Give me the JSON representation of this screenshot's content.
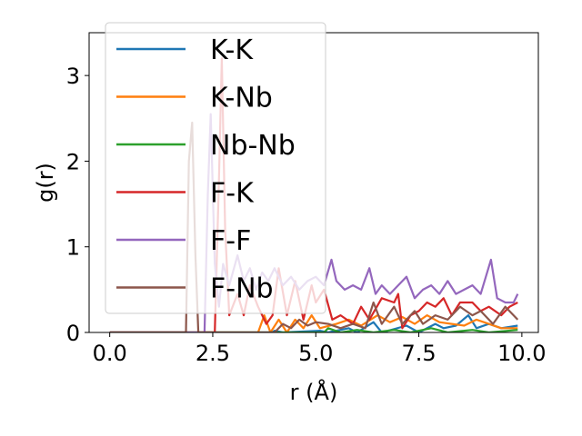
{
  "chart_data": {
    "type": "line",
    "title": "",
    "xlabel": "r (Å)",
    "ylabel": "g(r)",
    "xlim": [
      -0.5,
      10.4
    ],
    "ylim": [
      0,
      3.5
    ],
    "xticks": [
      "0.0",
      "2.5",
      "5.0",
      "7.5",
      "10.0"
    ],
    "xtick_values": [
      0,
      2.5,
      5,
      7.5,
      10
    ],
    "yticks": [
      "0",
      "1",
      "2",
      "3"
    ],
    "ytick_values": [
      0,
      1,
      2,
      3
    ],
    "legend_position": "upper-left",
    "grid": false,
    "series": [
      {
        "name": "K-K",
        "color": "#1f77b4",
        "points": [
          [
            0,
            0
          ],
          [
            3.95,
            0
          ],
          [
            4.0,
            0.02
          ],
          [
            4.2,
            0
          ],
          [
            5.1,
            0.02
          ],
          [
            5.3,
            0
          ],
          [
            5.8,
            0.05
          ],
          [
            6.0,
            0
          ],
          [
            6.4,
            0.12
          ],
          [
            6.6,
            0
          ],
          [
            7.2,
            0.08
          ],
          [
            7.5,
            0
          ],
          [
            7.9,
            0.1
          ],
          [
            8.1,
            0.05
          ],
          [
            8.4,
            0.08
          ],
          [
            8.7,
            0.2
          ],
          [
            8.9,
            0.05
          ],
          [
            9.2,
            0.1
          ],
          [
            9.5,
            0.05
          ],
          [
            9.9,
            0.08
          ]
        ]
      },
      {
        "name": "K-Nb",
        "color": "#ff7f0e",
        "points": [
          [
            0,
            0
          ],
          [
            3.6,
            0
          ],
          [
            3.75,
            0.2
          ],
          [
            3.9,
            0
          ],
          [
            4.1,
            0.15
          ],
          [
            4.3,
            0
          ],
          [
            4.5,
            0.15
          ],
          [
            4.7,
            0.05
          ],
          [
            4.9,
            0.2
          ],
          [
            5.1,
            0.05
          ],
          [
            5.5,
            0.1
          ],
          [
            5.8,
            0.15
          ],
          [
            6.1,
            0.08
          ],
          [
            6.5,
            0.2
          ],
          [
            6.8,
            0.12
          ],
          [
            7.1,
            0.18
          ],
          [
            7.4,
            0.1
          ],
          [
            7.7,
            0.2
          ],
          [
            8.0,
            0.12
          ],
          [
            8.3,
            0.1
          ],
          [
            8.6,
            0.08
          ],
          [
            8.9,
            0.15
          ],
          [
            9.2,
            0.1
          ],
          [
            9.5,
            0.05
          ],
          [
            9.9,
            0.05
          ]
        ]
      },
      {
        "name": "Nb-Nb",
        "color": "#2ca02c",
        "points": [
          [
            0,
            0
          ],
          [
            5.2,
            0
          ],
          [
            5.3,
            0.05
          ],
          [
            5.6,
            0
          ],
          [
            6.0,
            0.03
          ],
          [
            6.4,
            0
          ],
          [
            6.9,
            0.03
          ],
          [
            7.3,
            0
          ],
          [
            7.8,
            0.05
          ],
          [
            8.2,
            0
          ],
          [
            8.8,
            0.03
          ],
          [
            9.2,
            0
          ],
          [
            9.9,
            0.03
          ]
        ]
      },
      {
        "name": "F-K",
        "color": "#d62728",
        "points": [
          [
            0,
            0
          ],
          [
            2.55,
            0
          ],
          [
            2.65,
            1.8
          ],
          [
            2.72,
            3.2
          ],
          [
            2.8,
            1.2
          ],
          [
            2.9,
            0.2
          ],
          [
            3.1,
            0.45
          ],
          [
            3.25,
            0.2
          ],
          [
            3.4,
            0.55
          ],
          [
            3.6,
            0.3
          ],
          [
            3.8,
            0.1
          ],
          [
            3.95,
            0.2
          ],
          [
            4.1,
            0.75
          ],
          [
            4.3,
            0.2
          ],
          [
            4.5,
            0.6
          ],
          [
            4.7,
            0.15
          ],
          [
            4.9,
            0.55
          ],
          [
            5.0,
            0.35
          ],
          [
            5.2,
            0.5
          ],
          [
            5.4,
            0.15
          ],
          [
            5.6,
            0.2
          ],
          [
            5.9,
            0.1
          ],
          [
            6.1,
            0.3
          ],
          [
            6.3,
            0.15
          ],
          [
            6.6,
            0.4
          ],
          [
            6.9,
            0.35
          ],
          [
            7.0,
            0.45
          ],
          [
            7.1,
            0.05
          ],
          [
            7.3,
            0.2
          ],
          [
            7.5,
            0.25
          ],
          [
            7.7,
            0.35
          ],
          [
            7.9,
            0.3
          ],
          [
            8.1,
            0.4
          ],
          [
            8.3,
            0.2
          ],
          [
            8.5,
            0.35
          ],
          [
            8.8,
            0.35
          ],
          [
            9.0,
            0.25
          ],
          [
            9.2,
            0.3
          ],
          [
            9.5,
            0.2
          ],
          [
            9.7,
            0.3
          ],
          [
            9.9,
            0.35
          ]
        ]
      },
      {
        "name": "F-F",
        "color": "#9467bd",
        "points": [
          [
            0,
            0
          ],
          [
            2.3,
            0
          ],
          [
            2.38,
            1.6
          ],
          [
            2.45,
            2.55
          ],
          [
            2.55,
            0.8
          ],
          [
            2.65,
            0.3
          ],
          [
            2.75,
            0.8
          ],
          [
            2.9,
            0.55
          ],
          [
            3.1,
            0.9
          ],
          [
            3.25,
            0.6
          ],
          [
            3.4,
            0.75
          ],
          [
            3.55,
            0.5
          ],
          [
            3.7,
            0.7
          ],
          [
            3.85,
            0.6
          ],
          [
            4.0,
            0.75
          ],
          [
            4.2,
            0.55
          ],
          [
            4.4,
            0.65
          ],
          [
            4.6,
            0.5
          ],
          [
            4.8,
            0.6
          ],
          [
            5.0,
            0.65
          ],
          [
            5.2,
            0.55
          ],
          [
            5.38,
            0.85
          ],
          [
            5.5,
            0.6
          ],
          [
            5.7,
            0.5
          ],
          [
            5.9,
            0.55
          ],
          [
            6.1,
            0.5
          ],
          [
            6.3,
            0.75
          ],
          [
            6.45,
            0.45
          ],
          [
            6.6,
            0.55
          ],
          [
            6.8,
            0.45
          ],
          [
            7.0,
            0.55
          ],
          [
            7.2,
            0.65
          ],
          [
            7.4,
            0.4
          ],
          [
            7.6,
            0.5
          ],
          [
            7.8,
            0.55
          ],
          [
            8.0,
            0.45
          ],
          [
            8.2,
            0.6
          ],
          [
            8.4,
            0.45
          ],
          [
            8.6,
            0.5
          ],
          [
            8.8,
            0.55
          ],
          [
            9.0,
            0.45
          ],
          [
            9.25,
            0.85
          ],
          [
            9.4,
            0.4
          ],
          [
            9.6,
            0.35
          ],
          [
            9.8,
            0.35
          ],
          [
            9.9,
            0.45
          ]
        ]
      },
      {
        "name": "F-Nb",
        "color": "#8c564b",
        "points": [
          [
            0,
            0
          ],
          [
            1.85,
            0
          ],
          [
            1.92,
            2.0
          ],
          [
            2.0,
            2.45
          ],
          [
            2.08,
            0.9
          ],
          [
            2.15,
            0
          ],
          [
            4.0,
            0
          ],
          [
            4.2,
            0.1
          ],
          [
            4.4,
            0.05
          ],
          [
            4.6,
            0.15
          ],
          [
            4.8,
            0.08
          ],
          [
            5.0,
            0.12
          ],
          [
            5.3,
            0.1
          ],
          [
            5.6,
            0.05
          ],
          [
            5.9,
            0.1
          ],
          [
            6.2,
            0.05
          ],
          [
            6.4,
            0.35
          ],
          [
            6.6,
            0.1
          ],
          [
            6.9,
            0.3
          ],
          [
            7.1,
            0.1
          ],
          [
            7.4,
            0.25
          ],
          [
            7.6,
            0.1
          ],
          [
            7.9,
            0.2
          ],
          [
            8.2,
            0.15
          ],
          [
            8.5,
            0.3
          ],
          [
            8.8,
            0.2
          ],
          [
            9.0,
            0.25
          ],
          [
            9.3,
            0.1
          ],
          [
            9.6,
            0.3
          ],
          [
            9.9,
            0.15
          ]
        ]
      }
    ]
  }
}
